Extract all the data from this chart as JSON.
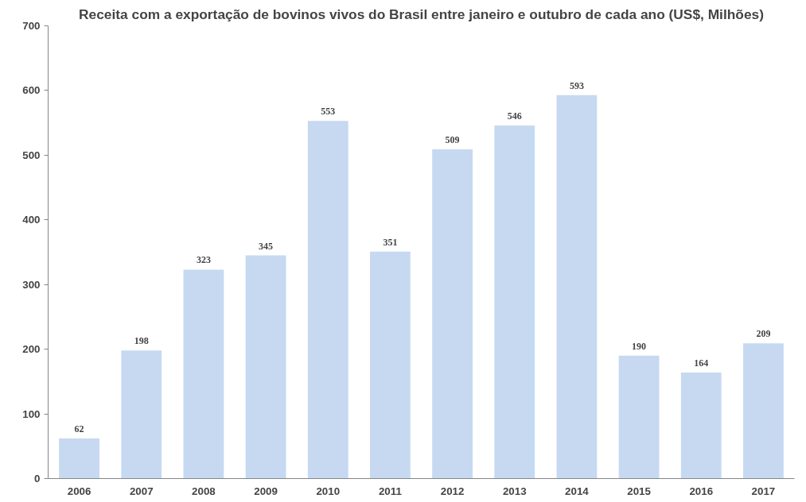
{
  "chart_data": {
    "type": "bar",
    "title": "Receita com a exportação de bovinos vivos do Brasil entre janeiro e outubro de cada ano (US$, Milhões)",
    "categories": [
      "2006",
      "2007",
      "2008",
      "2009",
      "2010",
      "2011",
      "2012",
      "2013",
      "2014",
      "2015",
      "2016",
      "2017"
    ],
    "values": [
      62,
      198,
      323,
      345,
      553,
      351,
      509,
      546,
      593,
      190,
      164,
      209
    ],
    "color": "#c6d9f1",
    "ylim": [
      0,
      700
    ],
    "yticks": [
      0,
      100,
      200,
      300,
      400,
      500,
      600,
      700
    ],
    "grid": false,
    "data_labels": true
  }
}
